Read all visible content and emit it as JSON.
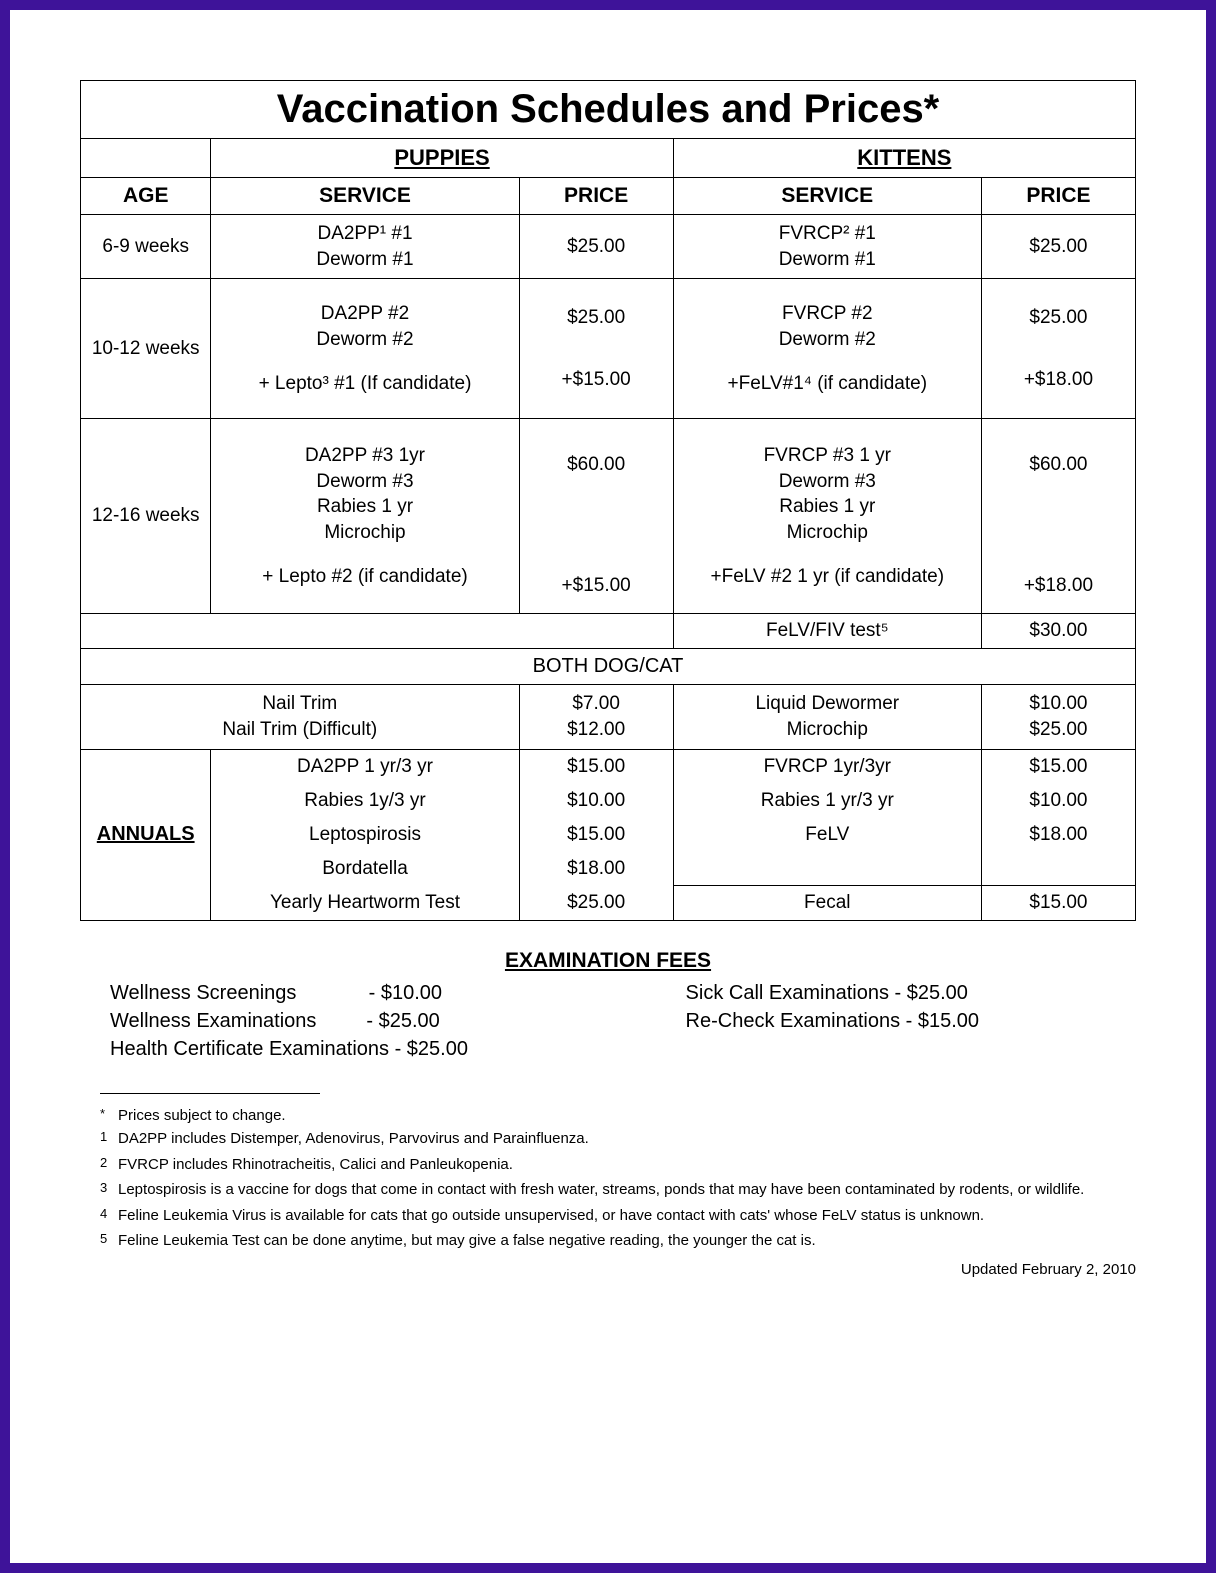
{
  "title": "Vaccination Schedules and Prices*",
  "headers": {
    "puppies": "PUPPIES",
    "kittens": "KITTENS",
    "age": "AGE",
    "service": "SERVICE",
    "price": "PRICE"
  },
  "rows": {
    "r1": {
      "age": "6-9 weeks",
      "pup_service": "DA2PP¹ #1\nDeworm #1",
      "pup_price": "$25.00",
      "kit_service": "FVRCP² #1\nDeworm #1",
      "kit_price": "$25.00"
    },
    "r2": {
      "age": "10-12 weeks",
      "pup_service": "DA2PP #2\nDeworm #2",
      "pup_price": "$25.00",
      "pup_extra_service": "+ Lepto³ #1 (If candidate)",
      "pup_extra_price": "+$15.00",
      "kit_service": "FVRCP #2\nDeworm #2",
      "kit_price": "$25.00",
      "kit_extra_service": "+FeLV#1⁴ (if candidate)",
      "kit_extra_price": "+$18.00"
    },
    "r3": {
      "age": "12-16 weeks",
      "pup_service": "DA2PP #3 1yr\nDeworm #3\nRabies 1 yr\nMicrochip",
      "pup_price": "$60.00",
      "pup_extra_service": "+ Lepto #2 (if candidate)",
      "pup_extra_price": "+$15.00",
      "kit_service": "FVRCP #3 1 yr\nDeworm #3\nRabies 1 yr\nMicrochip",
      "kit_price": "$60.00",
      "kit_extra_service": "+FeLV #2 1 yr (if candidate)",
      "kit_extra_price": "+$18.00"
    },
    "felv_test": {
      "service": "FeLV/FIV test⁵",
      "price": "$30.00"
    }
  },
  "both_label": "BOTH DOG/CAT",
  "both": {
    "left_service": "Nail Trim\nNail Trim (Difficult)",
    "left_price": "$7.00\n$12.00",
    "right_service": "Liquid Dewormer\nMicrochip",
    "right_price": "$10.00\n$25.00"
  },
  "annuals_label": "ANNUALS",
  "annuals": {
    "dog": {
      "s1": "DA2PP 1 yr/3 yr",
      "p1": "$15.00",
      "s2": "Rabies 1y/3 yr",
      "p2": "$10.00",
      "s3": "Leptospirosis",
      "p3": "$15.00",
      "s4": "Bordatella",
      "p4": "$18.00",
      "s5": "Yearly Heartworm Test",
      "p5": "$25.00"
    },
    "cat": {
      "s1": "FVRCP 1yr/3yr",
      "p1": "$15.00",
      "s2": "Rabies 1 yr/3 yr",
      "p2": "$10.00",
      "s3": "FeLV",
      "p3": "$18.00",
      "s4": "Fecal",
      "p4": "$15.00"
    }
  },
  "exam": {
    "title": "EXAMINATION FEES",
    "left": {
      "l1": "Wellness Screenings             - $10.00",
      "l2": "Wellness Examinations         - $25.00",
      "l3": "Health Certificate Examinations - $25.00"
    },
    "right": {
      "r1": "Sick Call Examinations - $25.00",
      "r2": "Re-Check Examinations - $15.00"
    }
  },
  "footnotes": {
    "star": "Prices subject to change.",
    "f1": "DA2PP includes Distemper, Adenovirus, Parvovirus and Parainfluenza.",
    "f2": "FVRCP includes Rhinotracheitis, Calici and Panleukopenia.",
    "f3": "Leptospirosis is a vaccine for dogs that come in contact with fresh water, streams, ponds that may have been contaminated by rodents, or wildlife.",
    "f4": "Feline Leukemia Virus is available for cats that go outside unsupervised, or have contact with cats' whose FeLV status is unknown.",
    "f5": "Feline Leukemia Test can be done anytime, but may give a false negative reading, the younger the cat is."
  },
  "updated": "Updated February 2, 2010"
}
